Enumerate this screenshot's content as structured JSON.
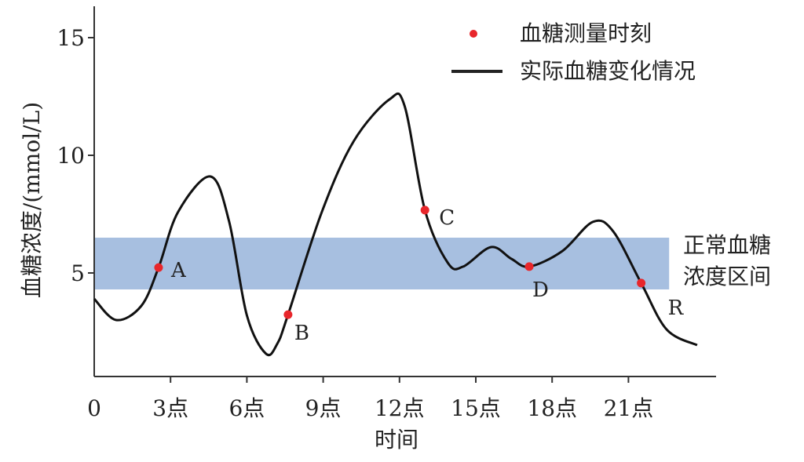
{
  "chart_data": {
    "type": "line",
    "title": "",
    "xlabel": "时间",
    "ylabel": "血糖浓度/(mmol/L)",
    "xlim": [
      0,
      24
    ],
    "ylim": [
      0.6,
      16
    ],
    "x_ticks": [
      {
        "value": 0,
        "label": "0"
      },
      {
        "value": 3,
        "label": "3点"
      },
      {
        "value": 6,
        "label": "6点"
      },
      {
        "value": 9,
        "label": "9点"
      },
      {
        "value": 12,
        "label": "12点"
      },
      {
        "value": 15,
        "label": "15点"
      },
      {
        "value": 18,
        "label": "18点"
      },
      {
        "value": 21,
        "label": "21点"
      }
    ],
    "y_ticks": [
      {
        "value": 5,
        "label": "5"
      },
      {
        "value": 10,
        "label": "10"
      },
      {
        "value": 15,
        "label": "15"
      }
    ],
    "grid": false,
    "legend_position": "top-right",
    "legend": [
      {
        "label": "血糖测量时刻",
        "marker": "dot",
        "color": "#e8262b"
      },
      {
        "label": "实际血糖变化情况",
        "marker": "line",
        "color": "#111111"
      }
    ],
    "band": {
      "label_line1": "正常血糖",
      "label_line2": "浓度区间",
      "y_range": [
        4.3,
        6.5
      ],
      "x_range": [
        0,
        22.6
      ],
      "color": "#a7bfe0"
    },
    "curve": [
      [
        0,
        3.9
      ],
      [
        0.86,
        3.0
      ],
      [
        1.85,
        3.6
      ],
      [
        2.53,
        5.23
      ],
      [
        3.3,
        7.6
      ],
      [
        4.57,
        9.1
      ],
      [
        5.3,
        7.2
      ],
      [
        6.0,
        3.2
      ],
      [
        6.75,
        1.57
      ],
      [
        7.2,
        2.0
      ],
      [
        7.62,
        3.23
      ],
      [
        8.95,
        7.6
      ],
      [
        10.2,
        10.6
      ],
      [
        11.6,
        12.37
      ],
      [
        12.2,
        12.1
      ],
      [
        13.0,
        7.67
      ],
      [
        13.9,
        5.43
      ],
      [
        14.5,
        5.27
      ],
      [
        15.6,
        6.1
      ],
      [
        16.4,
        5.6
      ],
      [
        17.1,
        5.27
      ],
      [
        18.4,
        5.93
      ],
      [
        19.6,
        7.17
      ],
      [
        20.4,
        6.77
      ],
      [
        21.5,
        4.57
      ],
      [
        22.5,
        2.6
      ],
      [
        23.7,
        1.93
      ]
    ],
    "line_color": "#111111",
    "points": [
      {
        "label": "A",
        "x": 2.53,
        "y": 5.23
      },
      {
        "label": "B",
        "x": 7.62,
        "y": 3.23
      },
      {
        "label": "C",
        "x": 13.0,
        "y": 7.67
      },
      {
        "label": "D",
        "x": 17.1,
        "y": 5.27
      },
      {
        "label": "R",
        "x": 21.5,
        "y": 4.57
      }
    ],
    "point_color": "#e8262b"
  }
}
